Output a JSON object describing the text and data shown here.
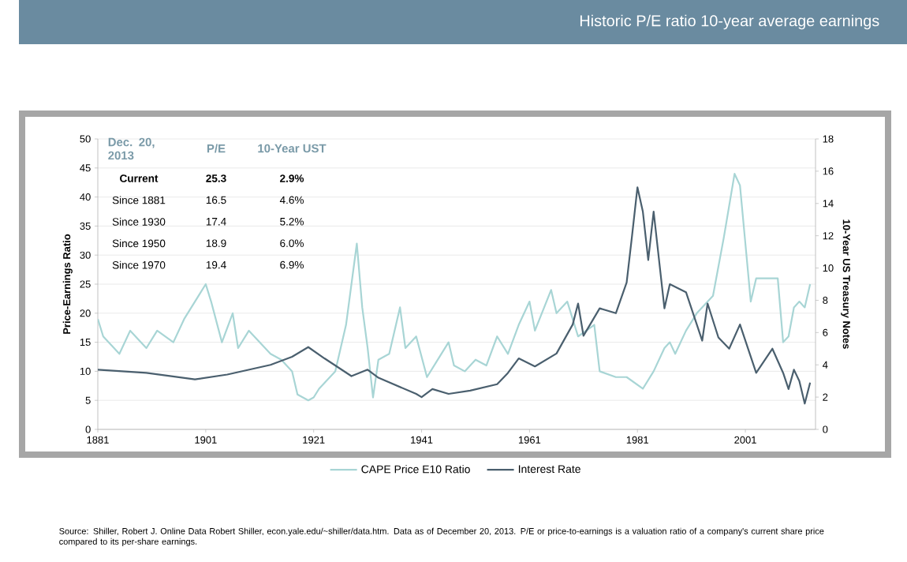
{
  "chart_data": {
    "type": "line",
    "title": "Historic P/E ratio 10-year average earnings",
    "ylabel": "Price-Earnings Ratio",
    "y2label": "10-Year US Treasury Notes",
    "xlim": [
      1881,
      2014
    ],
    "xticks": [
      1881,
      1901,
      1921,
      1941,
      1961,
      1981,
      2001
    ],
    "ylim": [
      0,
      50
    ],
    "yticks": [
      0,
      5,
      10,
      15,
      20,
      25,
      30,
      35,
      40,
      45,
      50
    ],
    "y2lim": [
      0,
      18
    ],
    "y2ticks": [
      0,
      2,
      4,
      6,
      8,
      10,
      12,
      14,
      16,
      18
    ],
    "grid": "y",
    "legend": "bottom",
    "series": [
      {
        "name": "CAPE Price E10 Ratio",
        "color": "#a8d5d5",
        "x": [
          1881,
          1882,
          1885,
          1887,
          1890,
          1892,
          1895,
          1897,
          1899,
          1901,
          1902,
          1904,
          1906,
          1907,
          1909,
          1911,
          1913,
          1915,
          1917,
          1918,
          1920,
          1921,
          1922,
          1925,
          1927,
          1929,
          1930,
          1931,
          1932,
          1933,
          1935,
          1937,
          1938,
          1940,
          1942,
          1944,
          1946,
          1947,
          1949,
          1951,
          1953,
          1955,
          1957,
          1959,
          1961,
          1962,
          1965,
          1966,
          1968,
          1970,
          1973,
          1974,
          1977,
          1979,
          1982,
          1984,
          1986,
          1987,
          1988,
          1990,
          1992,
          1995,
          1997,
          1999,
          2000,
          2001,
          2002,
          2003,
          2005,
          2007,
          2008,
          2009,
          2010,
          2011,
          2012,
          2013
        ],
        "values": [
          19,
          16,
          13,
          17,
          14,
          17,
          15,
          19,
          22,
          25,
          22,
          15,
          20,
          14,
          17,
          15,
          13,
          12,
          10,
          6,
          5,
          5.5,
          7,
          10,
          18,
          32,
          21,
          14,
          5.5,
          12,
          13,
          21,
          14,
          16,
          9,
          12,
          15,
          11,
          10,
          12,
          11,
          16,
          13,
          18,
          22,
          17,
          24,
          20,
          22,
          16,
          18,
          10,
          9,
          9,
          7,
          10,
          14,
          15,
          13,
          17,
          20,
          23,
          33,
          44,
          42,
          32,
          22,
          26,
          26,
          26,
          15,
          16,
          21,
          22,
          21,
          25
        ]
      },
      {
        "name": "Interest Rate",
        "color": "#4a5f6e",
        "axis": "y2",
        "x": [
          1881,
          1890,
          1899,
          1905,
          1913,
          1917,
          1920,
          1923,
          1928,
          1931,
          1933,
          1940,
          1941,
          1943,
          1946,
          1950,
          1955,
          1957,
          1959,
          1962,
          1966,
          1969,
          1970,
          1971,
          1974,
          1977,
          1979,
          1980,
          1981,
          1982,
          1983,
          1984,
          1986,
          1987,
          1990,
          1993,
          1994,
          1996,
          1998,
          2000,
          2002,
          2003,
          2006,
          2008,
          2009,
          2010,
          2011,
          2012,
          2013
        ],
        "values": [
          3.7,
          3.5,
          3.1,
          3.4,
          4.0,
          4.5,
          5.1,
          4.4,
          3.3,
          3.7,
          3.2,
          2.2,
          2.0,
          2.5,
          2.2,
          2.4,
          2.8,
          3.5,
          4.4,
          3.9,
          4.7,
          6.5,
          7.8,
          5.8,
          7.5,
          7.2,
          9.1,
          12,
          15,
          13.5,
          10.5,
          13.5,
          7.5,
          9,
          8.5,
          5.5,
          7.8,
          5.7,
          5.0,
          6.5,
          4.5,
          3.5,
          5.0,
          3.5,
          2.5,
          3.7,
          3.0,
          1.6,
          2.9
        ]
      }
    ],
    "annotations": [
      "Dec. 20, 2013",
      "P/E",
      "10-Year UST",
      "Current",
      "25.3",
      "2.9%",
      "Since 1881",
      "16.5",
      "4.6%",
      "Since 1930",
      "17.4",
      "5.2%",
      "Since 1950",
      "18.9",
      "6.0%",
      "Since 1970",
      "19.4",
      "6.9%",
      "Source: Shiller, Robert J. Online Data Robert Shiller, econ.yale.edu/~shiller/data.htm. Data as of December 20, 2013. P/E or price-to-earnings is a valuation ratio of a company's current share price compared to its per-share earnings."
    ]
  }
}
